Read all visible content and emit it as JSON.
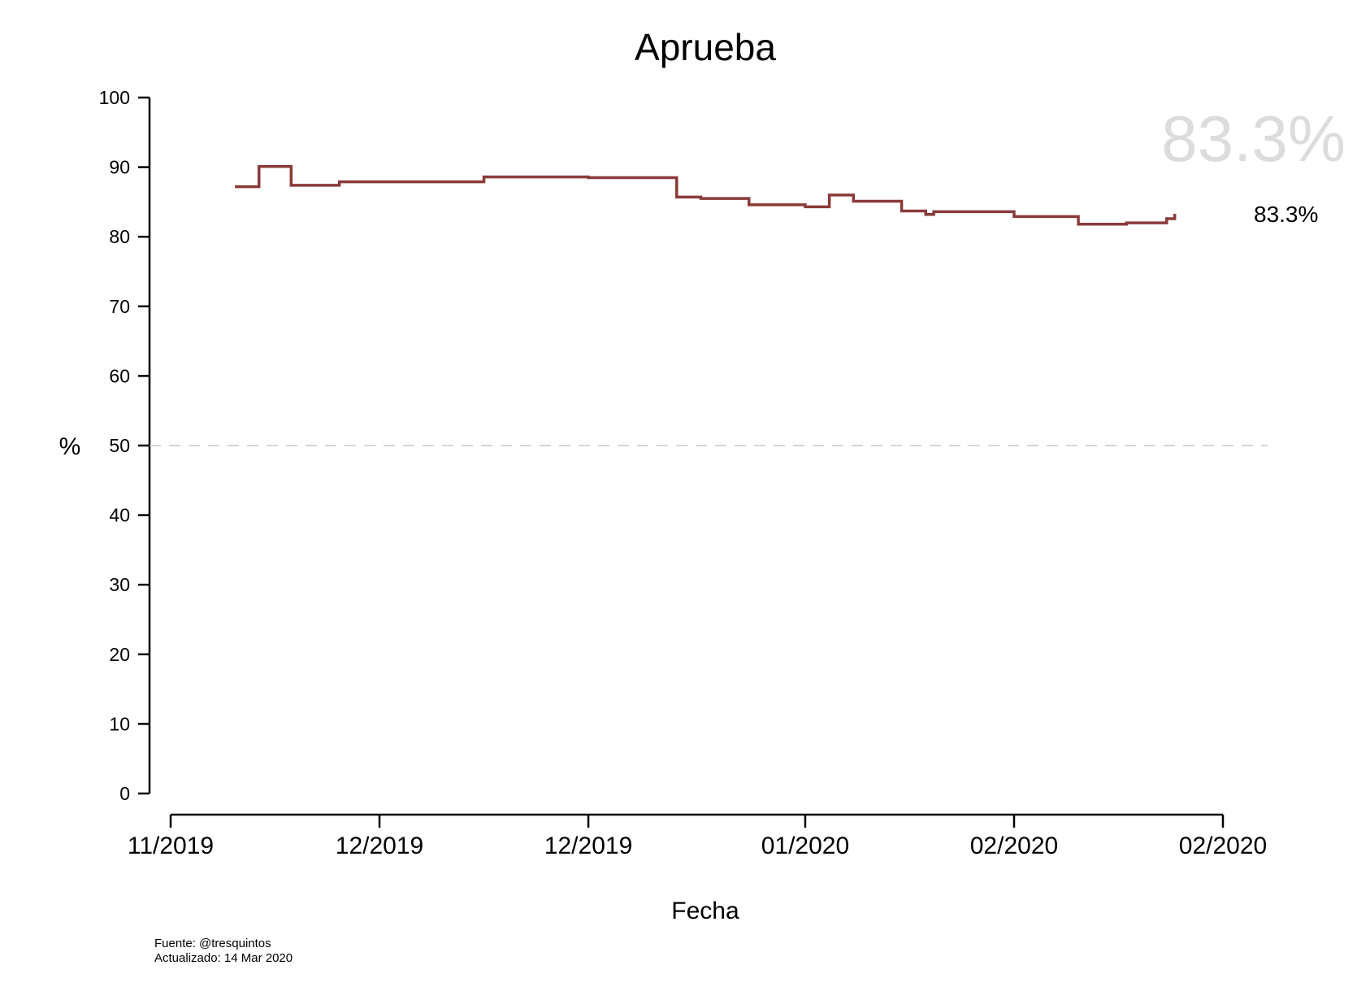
{
  "chart_data": {
    "type": "line",
    "title": "Aprueba",
    "xlabel": "Fecha",
    "ylabel": "%",
    "ylim": [
      0,
      100
    ],
    "y_ticks": [
      0,
      10,
      20,
      30,
      40,
      50,
      60,
      70,
      80,
      90,
      100
    ],
    "x_ticks": [
      "11/2019",
      "12/2019",
      "12/2019",
      "01/2020",
      "02/2020",
      "02/2020"
    ],
    "reference_line": 50,
    "line_style": "step",
    "grid": false,
    "series": [
      {
        "color": "#8b3a3a",
        "x": [
          "2019-11-14",
          "2019-11-17",
          "2019-11-21",
          "2019-11-27",
          "2019-12-15",
          "2019-12-28",
          "2020-01-08",
          "2020-01-11",
          "2020-01-17",
          "2020-01-24",
          "2020-01-27",
          "2020-01-30",
          "2020-02-05",
          "2020-02-08",
          "2020-02-09",
          "2020-02-19",
          "2020-02-27",
          "2020-03-04",
          "2020-03-09"
        ],
        "values": [
          87.2,
          90.1,
          87.4,
          87.9,
          88.6,
          88.5,
          85.7,
          85.5,
          84.6,
          84.3,
          86.0,
          85.1,
          83.7,
          83.2,
          83.6,
          82.9,
          81.8,
          82.0,
          82.6
        ]
      }
    ],
    "last_point": {
      "date": "2020-03-10",
      "value": 83.3
    },
    "last_value_label": "83.3%",
    "big_value_label": "83.3%"
  },
  "footer": {
    "source": "Fuente: @tresquintos",
    "updated": "Actualizado: 14 Mar 2020"
  }
}
